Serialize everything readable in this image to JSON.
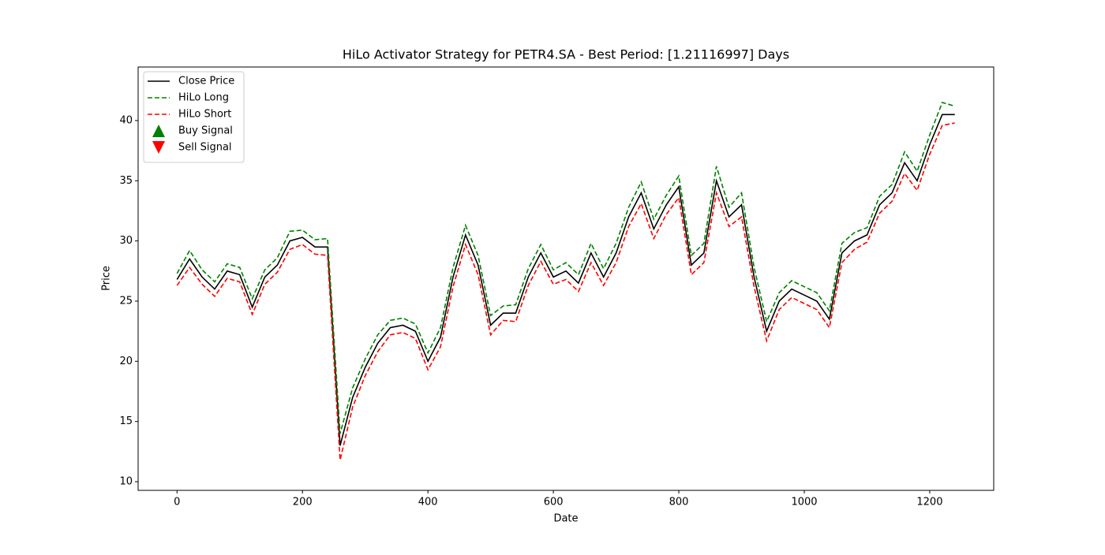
{
  "chart_data": {
    "type": "line",
    "title": "HiLo Activator Strategy for PETR4.SA - Best Period: [1.21116997] Days",
    "x_label": "Date",
    "y_label": "Price",
    "x": [
      0,
      20,
      40,
      60,
      80,
      100,
      120,
      140,
      160,
      180,
      200,
      220,
      240,
      260,
      280,
      300,
      320,
      340,
      360,
      380,
      400,
      420,
      440,
      460,
      480,
      500,
      520,
      540,
      560,
      580,
      600,
      620,
      640,
      660,
      680,
      700,
      720,
      740,
      760,
      780,
      800,
      820,
      840,
      860,
      880,
      900,
      920,
      940,
      960,
      980,
      1000,
      1020,
      1040,
      1060,
      1080,
      1100,
      1120,
      1140,
      1160,
      1180,
      1200,
      1220,
      1240
    ],
    "series": [
      {
        "name": "Close Price",
        "color": "#000000",
        "dashed": false,
        "values": [
          26.8,
          28.5,
          27.0,
          26.0,
          27.5,
          27.2,
          24.5,
          27.0,
          28.0,
          30.0,
          30.3,
          29.5,
          29.5,
          13.0,
          17.0,
          19.5,
          21.5,
          22.8,
          23.0,
          22.5,
          20.0,
          22.0,
          27.0,
          30.5,
          28.0,
          23.0,
          24.0,
          24.0,
          27.0,
          29.0,
          27.0,
          27.5,
          26.5,
          29.0,
          27.0,
          29.0,
          32.0,
          34.0,
          31.0,
          33.0,
          34.5,
          28.0,
          29.0,
          35.0,
          32.0,
          33.0,
          27.0,
          22.5,
          25.0,
          26.0,
          25.5,
          25.0,
          23.5,
          29.0,
          30.0,
          30.5,
          33.0,
          34.0,
          36.5,
          35.0,
          38.0,
          40.5,
          40.5
        ]
      },
      {
        "name": "HiLo Long",
        "color": "#008000",
        "dashed": true,
        "values": [
          27.3,
          29.2,
          27.6,
          26.6,
          28.1,
          27.8,
          25.2,
          27.6,
          28.6,
          30.8,
          30.9,
          30.1,
          30.2,
          14.0,
          17.8,
          20.2,
          22.2,
          23.4,
          23.6,
          23.1,
          20.7,
          22.8,
          27.8,
          31.3,
          28.8,
          23.8,
          24.6,
          24.7,
          27.7,
          29.7,
          27.6,
          28.2,
          27.2,
          29.8,
          27.7,
          29.8,
          32.8,
          34.9,
          31.8,
          33.8,
          35.4,
          28.8,
          29.8,
          36.2,
          32.8,
          34.0,
          27.8,
          23.3,
          25.7,
          26.7,
          26.2,
          25.7,
          24.2,
          29.8,
          30.7,
          31.1,
          33.7,
          34.7,
          37.4,
          35.8,
          38.8,
          41.5,
          41.2
        ]
      },
      {
        "name": "HiLo Short",
        "color": "#ff0000",
        "dashed": true,
        "values": [
          26.3,
          27.8,
          26.4,
          25.4,
          26.9,
          26.6,
          23.9,
          26.4,
          27.4,
          29.3,
          29.7,
          28.9,
          28.8,
          11.8,
          16.2,
          18.8,
          20.8,
          22.2,
          22.4,
          21.9,
          19.3,
          21.2,
          26.2,
          29.7,
          27.2,
          22.2,
          23.4,
          23.3,
          26.3,
          28.3,
          26.4,
          26.8,
          25.8,
          28.2,
          26.3,
          28.2,
          31.2,
          33.1,
          30.2,
          32.2,
          33.6,
          27.2,
          28.2,
          34.0,
          31.2,
          32.0,
          26.2,
          21.7,
          24.3,
          25.3,
          24.8,
          24.3,
          22.8,
          28.2,
          29.3,
          29.9,
          32.3,
          33.3,
          35.6,
          34.2,
          37.2,
          39.6,
          39.8
        ]
      },
      {
        "name": "Buy Signal",
        "color": "#008000",
        "marker": "up"
      },
      {
        "name": "Sell Signal",
        "color": "#ff0000",
        "marker": "down"
      }
    ],
    "xlim": [
      -62,
      1302
    ],
    "ylim": [
      9.28,
      44.45
    ],
    "xticks": [
      0,
      200,
      400,
      600,
      800,
      1000,
      1200
    ],
    "yticks": [
      10,
      15,
      20,
      25,
      30,
      35,
      40
    ],
    "grid": false,
    "legend": "upper left"
  }
}
